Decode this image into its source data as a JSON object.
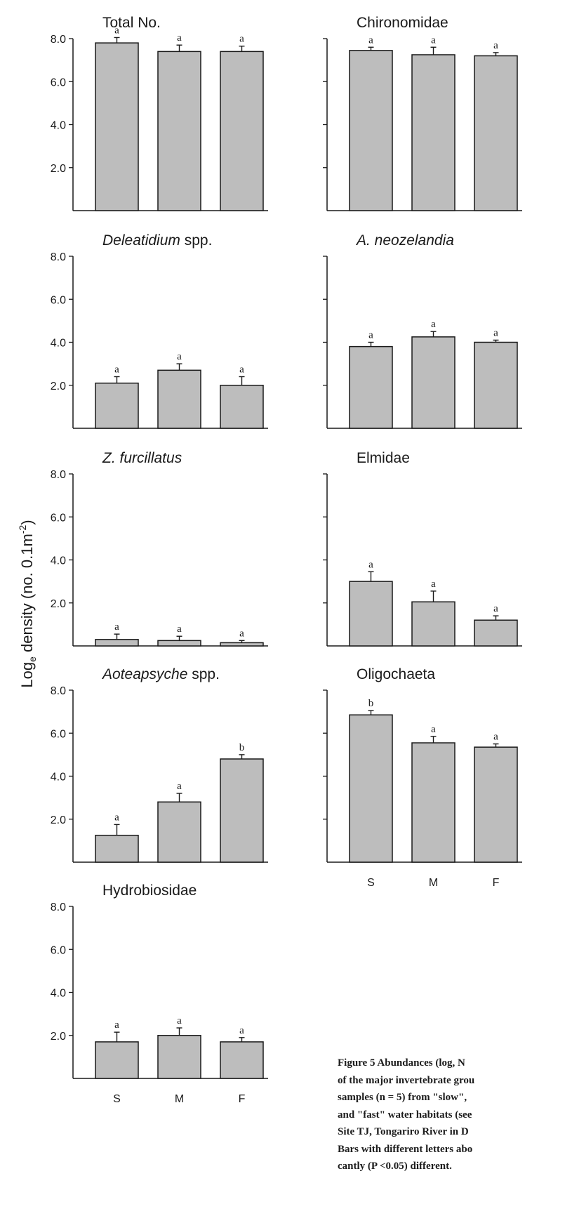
{
  "ylabel": "Log_e density (no. 0.1m^-2)",
  "ylabel_parts": {
    "prefix": "Log",
    "sub": "e",
    "mid": " density (no. 0.1m",
    "sup": "-2",
    "suffix": ")"
  },
  "colors": {
    "bar_fill": "#bdbdbd",
    "bar_stroke": "#1a1a1a",
    "axis": "#1a1a1a",
    "text": "#1a1a1a"
  },
  "caption_lines": [
    "Figure 5   Abundances (log, N",
    "of the major invertebrate grou",
    "samples (n = 5) from \"slow\",",
    "and \"fast\" water habitats (see",
    "Site TJ, Tongariro River in D",
    "Bars with different letters abo",
    "cantly (P <0.05) different."
  ],
  "chart_data": [
    {
      "type": "bar",
      "title": "Total No.",
      "italic": false,
      "categories": [
        "S",
        "M",
        "F"
      ],
      "values": [
        7.8,
        7.4,
        7.4
      ],
      "errors": [
        0.25,
        0.3,
        0.25
      ],
      "letters": [
        "a",
        "a",
        "a"
      ],
      "yticks": [
        "8.0",
        "6.0",
        "4.0",
        "2.0"
      ],
      "ylim": [
        0,
        8.0
      ],
      "show_yticks": true,
      "show_xticks": false
    },
    {
      "type": "bar",
      "title": "Chironomidae",
      "italic": false,
      "categories": [
        "S",
        "M",
        "F"
      ],
      "values": [
        7.45,
        7.25,
        7.2
      ],
      "errors": [
        0.15,
        0.35,
        0.15
      ],
      "letters": [
        "a",
        "a",
        "a"
      ],
      "yticks": [],
      "ylim": [
        0,
        8.0
      ],
      "show_yticks": false,
      "show_xticks": false
    },
    {
      "type": "bar",
      "title": "Deleatidium spp.",
      "title_parts": [
        {
          "text": "Deleatidium",
          "italic": true
        },
        {
          "text": " spp.",
          "italic": false
        }
      ],
      "categories": [
        "S",
        "M",
        "F"
      ],
      "values": [
        2.1,
        2.7,
        2.0
      ],
      "errors": [
        0.3,
        0.3,
        0.4
      ],
      "letters": [
        "a",
        "a",
        "a"
      ],
      "yticks": [
        "8.0",
        "6.0",
        "4.0",
        "2.0"
      ],
      "ylim": [
        0,
        8.0
      ],
      "show_yticks": true,
      "show_xticks": false
    },
    {
      "type": "bar",
      "title": "A. neozelandia",
      "italic": true,
      "categories": [
        "S",
        "M",
        "F"
      ],
      "values": [
        3.8,
        4.25,
        4.0
      ],
      "errors": [
        0.2,
        0.25,
        0.1
      ],
      "letters": [
        "a",
        "a",
        "a"
      ],
      "yticks": [],
      "ylim": [
        0,
        8.0
      ],
      "show_yticks": false,
      "show_xticks": false
    },
    {
      "type": "bar",
      "title": "Z. furcillatus",
      "italic": true,
      "categories": [
        "S",
        "M",
        "F"
      ],
      "values": [
        0.3,
        0.25,
        0.15
      ],
      "errors": [
        0.25,
        0.2,
        0.1
      ],
      "letters": [
        "a",
        "a",
        "a"
      ],
      "yticks": [
        "8.0",
        "6.0",
        "4.0",
        "2.0"
      ],
      "ylim": [
        0,
        8.0
      ],
      "show_yticks": true,
      "show_xticks": false
    },
    {
      "type": "bar",
      "title": "Elmidae",
      "italic": false,
      "categories": [
        "S",
        "M",
        "F"
      ],
      "values": [
        3.0,
        2.05,
        1.2
      ],
      "errors": [
        0.45,
        0.5,
        0.2
      ],
      "letters": [
        "a",
        "a",
        "a"
      ],
      "yticks": [],
      "ylim": [
        0,
        8.0
      ],
      "show_yticks": false,
      "show_xticks": false
    },
    {
      "type": "bar",
      "title": "Aoteapsyche spp.",
      "title_parts": [
        {
          "text": "Aoteapsyche",
          "italic": true
        },
        {
          "text": " spp.",
          "italic": false
        }
      ],
      "categories": [
        "S",
        "M",
        "F"
      ],
      "values": [
        1.25,
        2.8,
        4.8
      ],
      "errors": [
        0.5,
        0.4,
        0.2
      ],
      "letters": [
        "a",
        "a",
        "b"
      ],
      "yticks": [
        "8.0",
        "6.0",
        "4.0",
        "2.0"
      ],
      "ylim": [
        0,
        8.0
      ],
      "show_yticks": true,
      "show_xticks": false
    },
    {
      "type": "bar",
      "title": "Oligochaeta",
      "italic": false,
      "categories": [
        "S",
        "M",
        "F"
      ],
      "values": [
        6.85,
        5.55,
        5.35
      ],
      "errors": [
        0.2,
        0.3,
        0.15
      ],
      "letters": [
        "b",
        "a",
        "a"
      ],
      "yticks": [],
      "ylim": [
        0,
        8.0
      ],
      "show_yticks": false,
      "show_xticks": true
    },
    {
      "type": "bar",
      "title": "Hydrobiosidae",
      "italic": false,
      "categories": [
        "S",
        "M",
        "F"
      ],
      "values": [
        1.7,
        2.0,
        1.7
      ],
      "errors": [
        0.45,
        0.35,
        0.2
      ],
      "letters": [
        "a",
        "a",
        "a"
      ],
      "yticks": [
        "8.0",
        "6.0",
        "4.0",
        "2.0"
      ],
      "ylim": [
        0,
        8.0
      ],
      "show_yticks": true,
      "show_xticks": true
    }
  ]
}
